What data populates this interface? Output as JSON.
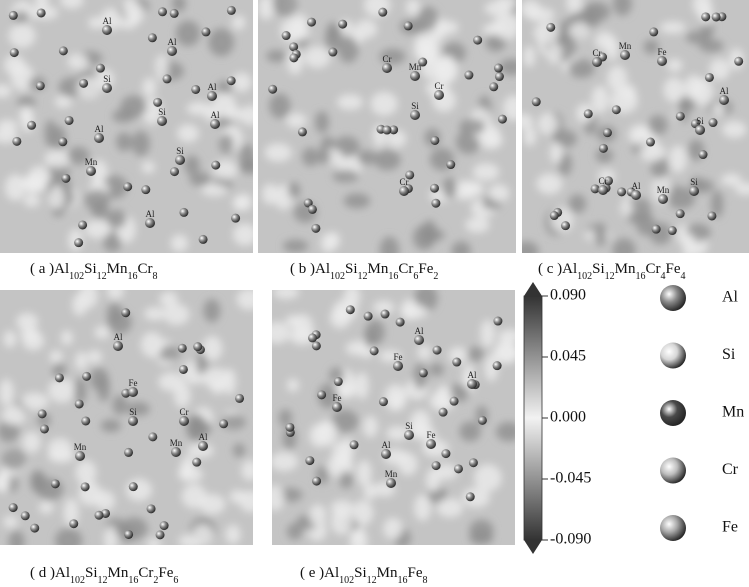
{
  "panels": [
    {
      "atoms": [
        "Al",
        "Al",
        "Si",
        "Al",
        "Si",
        "Al",
        "Al",
        "Mn",
        "Si",
        "Al"
      ]
    },
    {
      "atoms": [
        "Mn",
        "Cr",
        "Cr",
        "Si",
        "Cr"
      ]
    },
    {
      "atoms": [
        "Mn",
        "Fe",
        "Cr",
        "Al",
        "Si",
        "Cr",
        "Al",
        "Mn",
        "Si"
      ]
    },
    {
      "atoms": [
        "Al",
        "Fe",
        "Si",
        "Cr",
        "Mn",
        "Mn",
        "Al"
      ]
    },
    {
      "atoms": [
        "Al",
        "Fe",
        "Al",
        "Fe",
        "Si",
        "Fe",
        "Al",
        "Mn"
      ]
    }
  ],
  "captions": [
    {
      "label": "( a )",
      "formula": [
        [
          "Al",
          "102"
        ],
        [
          "Si",
          "12"
        ],
        [
          "Mn",
          "16"
        ],
        [
          "Cr",
          "8"
        ]
      ]
    },
    {
      "label": "( b )",
      "formula": [
        [
          "Al",
          "102"
        ],
        [
          "Si",
          "12"
        ],
        [
          "Mn",
          "16"
        ],
        [
          "Cr",
          "6"
        ],
        [
          "Fe",
          "2"
        ]
      ]
    },
    {
      "label": "( c )",
      "formula": [
        [
          "Al",
          "102"
        ],
        [
          "Si",
          "12"
        ],
        [
          "Mn",
          "16"
        ],
        [
          "Cr",
          "4"
        ],
        [
          "Fe",
          "4"
        ]
      ]
    },
    {
      "label": "( d )",
      "formula": [
        [
          "Al",
          "102"
        ],
        [
          "Si",
          "12"
        ],
        [
          "Mn",
          "16"
        ],
        [
          "Cr",
          "2"
        ],
        [
          "Fe",
          "6"
        ]
      ]
    },
    {
      "label": "( e )",
      "formula": [
        [
          "Al",
          "102"
        ],
        [
          "Si",
          "12"
        ],
        [
          "Mn",
          "16"
        ],
        [
          "Fe",
          "8"
        ]
      ]
    }
  ],
  "colorbar": {
    "lim": [
      -0.09,
      0.09
    ],
    "ticks": [
      {
        "value": 0.09,
        "label": "0.090"
      },
      {
        "value": 0.045,
        "label": "0.045"
      },
      {
        "value": 0,
        "label": "0.000"
      },
      {
        "value": -0.045,
        "label": "-0.045"
      },
      {
        "value": -0.09,
        "label": "-0.090"
      }
    ]
  },
  "legend": [
    {
      "name": "Al",
      "color": "#8a8a8a"
    },
    {
      "name": "Si",
      "color": "#d6d6d6"
    },
    {
      "name": "Mn",
      "color": "#4a4a4a"
    },
    {
      "name": "Cr",
      "color": "#bdbdbd"
    },
    {
      "name": "Fe",
      "color": "#a8a8a8"
    }
  ]
}
